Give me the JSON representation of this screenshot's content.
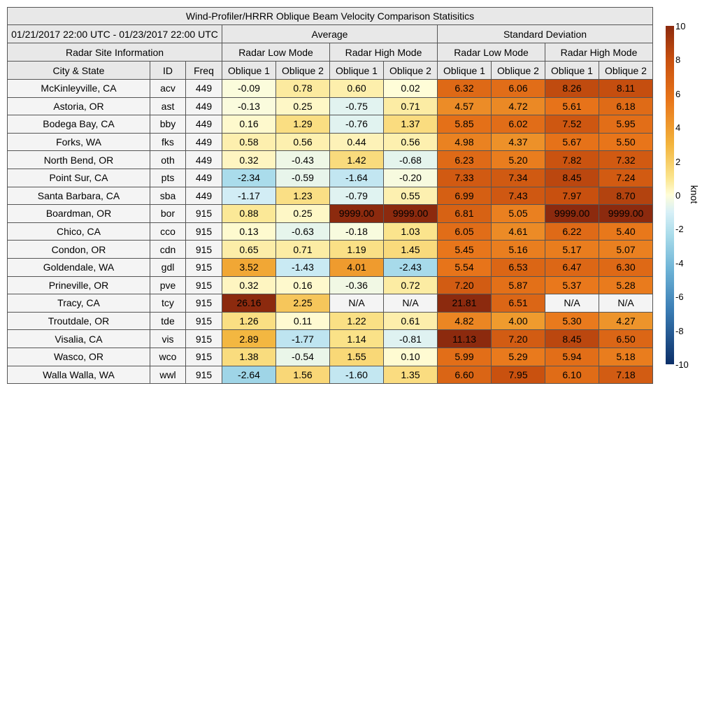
{
  "chart_data": {
    "type": "table",
    "title": "Wind-Profiler/HRRR Oblique Beam Velocity Comparison Statisitics",
    "period": "01/21/2017 22:00 UTC - 01/23/2017 22:00 UTC",
    "group_headers": [
      "Average",
      "Standard Deviation"
    ],
    "section_header": "Radar Site Information",
    "mode_headers": [
      "Radar Low Mode",
      "Radar High Mode",
      "Radar Low Mode",
      "Radar High Mode"
    ],
    "columns": [
      "City & State",
      "ID",
      "Freq",
      "Oblique 1",
      "Oblique 2",
      "Oblique 1",
      "Oblique 2",
      "Oblique 1",
      "Oblique 2",
      "Oblique 1",
      "Oblique 2"
    ],
    "rows": [
      {
        "city": "McKinleyville, CA",
        "id": "acv",
        "freq": "449",
        "values": [
          "-0.09",
          "0.78",
          "0.60",
          "0.02",
          "6.32",
          "6.06",
          "8.26",
          "8.11"
        ]
      },
      {
        "city": "Astoria, OR",
        "id": "ast",
        "freq": "449",
        "values": [
          "-0.13",
          "0.25",
          "-0.75",
          "0.71",
          "4.57",
          "4.72",
          "5.61",
          "6.18"
        ]
      },
      {
        "city": "Bodega Bay, CA",
        "id": "bby",
        "freq": "449",
        "values": [
          "0.16",
          "1.29",
          "-0.76",
          "1.37",
          "5.85",
          "6.02",
          "7.52",
          "5.95"
        ]
      },
      {
        "city": "Forks, WA",
        "id": "fks",
        "freq": "449",
        "values": [
          "0.58",
          "0.56",
          "0.44",
          "0.56",
          "4.98",
          "4.37",
          "5.67",
          "5.50"
        ]
      },
      {
        "city": "North Bend, OR",
        "id": "oth",
        "freq": "449",
        "values": [
          "0.32",
          "-0.43",
          "1.42",
          "-0.68",
          "6.23",
          "5.20",
          "7.82",
          "7.32"
        ]
      },
      {
        "city": "Point Sur, CA",
        "id": "pts",
        "freq": "449",
        "values": [
          "-2.34",
          "-0.59",
          "-1.64",
          "-0.20",
          "7.33",
          "7.34",
          "8.45",
          "7.24"
        ]
      },
      {
        "city": "Santa Barbara, CA",
        "id": "sba",
        "freq": "449",
        "values": [
          "-1.17",
          "1.23",
          "-0.79",
          "0.55",
          "6.99",
          "7.43",
          "7.97",
          "8.70"
        ]
      },
      {
        "city": "Boardman, OR",
        "id": "bor",
        "freq": "915",
        "values": [
          "0.88",
          "0.25",
          "9999.00",
          "9999.00",
          "6.81",
          "5.05",
          "9999.00",
          "9999.00"
        ]
      },
      {
        "city": "Chico, CA",
        "id": "cco",
        "freq": "915",
        "values": [
          "0.13",
          "-0.63",
          "-0.18",
          "1.03",
          "6.05",
          "4.61",
          "6.22",
          "5.40"
        ]
      },
      {
        "city": "Condon, OR",
        "id": "cdn",
        "freq": "915",
        "values": [
          "0.65",
          "0.71",
          "1.19",
          "1.45",
          "5.45",
          "5.16",
          "5.17",
          "5.07"
        ]
      },
      {
        "city": "Goldendale, WA",
        "id": "gdl",
        "freq": "915",
        "values": [
          "3.52",
          "-1.43",
          "4.01",
          "-2.43",
          "5.54",
          "6.53",
          "6.47",
          "6.30"
        ]
      },
      {
        "city": "Prineville, OR",
        "id": "pve",
        "freq": "915",
        "values": [
          "0.32",
          "0.16",
          "-0.36",
          "0.72",
          "7.20",
          "5.87",
          "5.37",
          "5.28"
        ]
      },
      {
        "city": "Tracy, CA",
        "id": "tcy",
        "freq": "915",
        "values": [
          "26.16",
          "2.25",
          "N/A",
          "N/A",
          "21.81",
          "6.51",
          "N/A",
          "N/A"
        ]
      },
      {
        "city": "Troutdale, OR",
        "id": "tde",
        "freq": "915",
        "values": [
          "1.26",
          "0.11",
          "1.22",
          "0.61",
          "4.82",
          "4.00",
          "5.30",
          "4.27"
        ]
      },
      {
        "city": "Visalia, CA",
        "id": "vis",
        "freq": "915",
        "values": [
          "2.89",
          "-1.77",
          "1.14",
          "-0.81",
          "11.13",
          "7.20",
          "8.45",
          "6.50"
        ]
      },
      {
        "city": "Wasco, OR",
        "id": "wco",
        "freq": "915",
        "values": [
          "1.38",
          "-0.54",
          "1.55",
          "0.10",
          "5.99",
          "5.29",
          "5.94",
          "5.18"
        ]
      },
      {
        "city": "Walla Walla, WA",
        "id": "wwl",
        "freq": "915",
        "values": [
          "-2.64",
          "1.56",
          "-1.60",
          "1.35",
          "6.60",
          "7.95",
          "6.10",
          "7.18"
        ]
      }
    ],
    "colorbar": {
      "label": "knot",
      "ticks": [
        "10",
        "8",
        "6",
        "4",
        "2",
        "0",
        "-2",
        "-4",
        "-6",
        "-8",
        "-10"
      ],
      "range": [
        -10,
        10
      ]
    }
  }
}
